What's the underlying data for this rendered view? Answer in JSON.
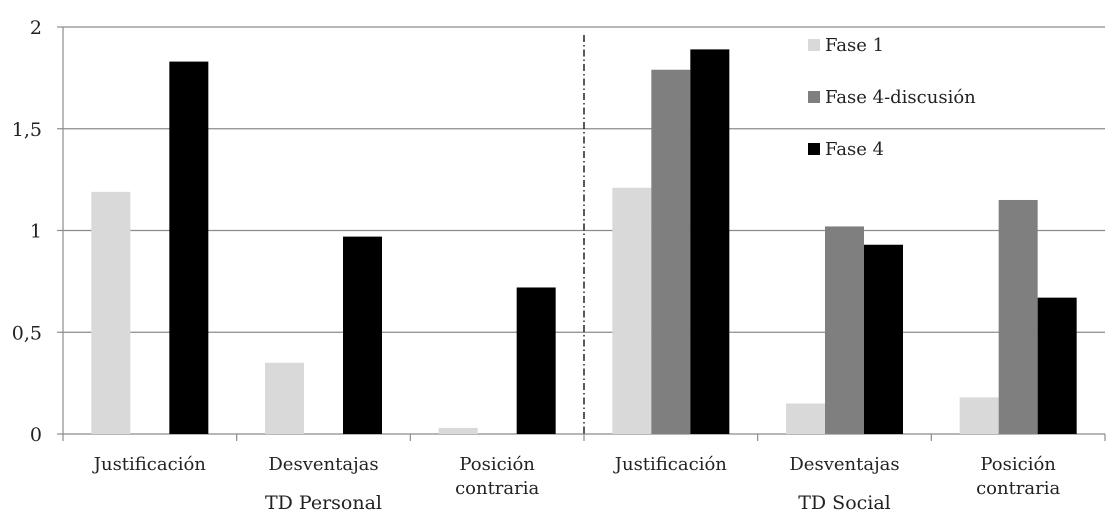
{
  "chart_data": {
    "type": "bar",
    "categories": [
      "Justificación",
      "Desventajas",
      "Posición contraria",
      "Justificación",
      "Desventajas",
      "Posición contraria"
    ],
    "category_lines": [
      [
        "Justificación"
      ],
      [
        "Desventajas"
      ],
      [
        "Posición",
        "contraria"
      ],
      [
        "Justificación"
      ],
      [
        "Desventajas"
      ],
      [
        "Posición",
        "contraria"
      ]
    ],
    "groups": [
      {
        "label": "TD Personal",
        "categories": [
          0,
          1,
          2
        ]
      },
      {
        "label": "TD Social",
        "categories": [
          3,
          4,
          5
        ]
      }
    ],
    "series": [
      {
        "name": "Fase 1",
        "color": "#d9d9d9",
        "values": [
          1.19,
          0.35,
          0.03,
          1.21,
          0.15,
          0.18
        ]
      },
      {
        "name": "Fase 4-discusión",
        "color": "#7f7f7f",
        "values": [
          null,
          null,
          null,
          1.79,
          1.02,
          1.15
        ]
      },
      {
        "name": "Fase 4",
        "color": "#000000",
        "values": [
          1.83,
          0.97,
          0.72,
          1.89,
          0.93,
          0.67
        ]
      }
    ],
    "ylim": [
      0,
      2
    ],
    "yticks": [
      0,
      0.5,
      1,
      1.5,
      2
    ],
    "ytick_labels": [
      "0",
      "0,5",
      "1",
      "1,5",
      "2"
    ],
    "grid": true,
    "legend_position": "top-right",
    "group_separator": "dash-dot vertical line between TD Personal and TD Social",
    "title": "",
    "xlabel": "",
    "ylabel": ""
  }
}
